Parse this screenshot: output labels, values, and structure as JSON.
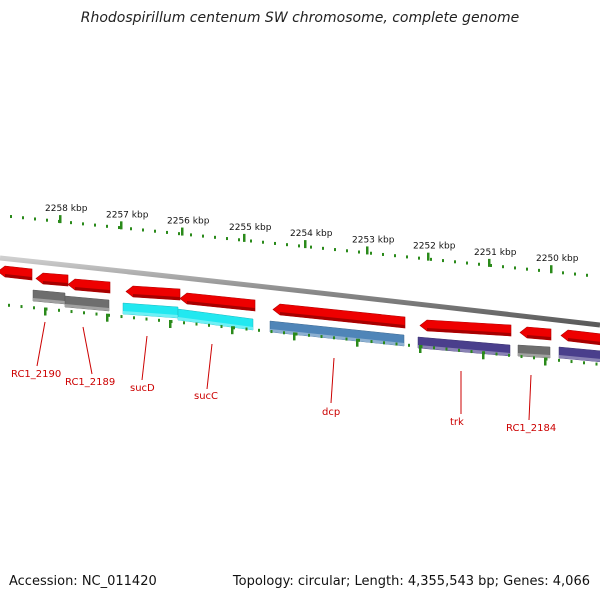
{
  "title": "Rhodospirillum centenum SW chromosome, complete genome",
  "accession": "Accession: NC_011420",
  "summary": "Topology: circular; Length: 4,355,543 bp; Genes: 4,066",
  "colors": {
    "forward": "#ee0000",
    "gray": "#6e6e6e",
    "cyan": "#22e8f0",
    "steelblue": "#4f85b8",
    "slate": "#4a3f8c",
    "tick": "#2a8a1a",
    "backbone": "#8a8a8a",
    "label": "#cc0000"
  },
  "scale_ticks": [
    {
      "label": "2258 kbp"
    },
    {
      "label": "2257 kbp"
    },
    {
      "label": "2256 kbp"
    },
    {
      "label": "2255 kbp"
    },
    {
      "label": "2254 kbp"
    },
    {
      "label": "2253 kbp"
    },
    {
      "label": "2252 kbp"
    },
    {
      "label": "2251 kbp"
    },
    {
      "label": "2250 kbp"
    }
  ],
  "forward_genes": [
    {
      "color": "forward"
    },
    {
      "color": "forward"
    },
    {
      "color": "forward"
    },
    {
      "color": "forward"
    },
    {
      "color": "forward"
    },
    {
      "color": "forward"
    },
    {
      "color": "forward"
    },
    {
      "color": "forward"
    },
    {
      "color": "forward"
    }
  ],
  "reverse_genes": [
    {
      "color": "gray"
    },
    {
      "color": "gray"
    },
    {
      "color": "cyan"
    },
    {
      "color": "cyan"
    },
    {
      "color": "steelblue"
    },
    {
      "color": "slate"
    },
    {
      "color": "gray"
    },
    {
      "color": "slate"
    }
  ],
  "gene_labels": [
    {
      "name": "RC1_2190"
    },
    {
      "name": "RC1_2189"
    },
    {
      "name": "sucD"
    },
    {
      "name": "sucC"
    },
    {
      "name": "dcp"
    },
    {
      "name": "trk"
    },
    {
      "name": "RC1_2184"
    }
  ]
}
